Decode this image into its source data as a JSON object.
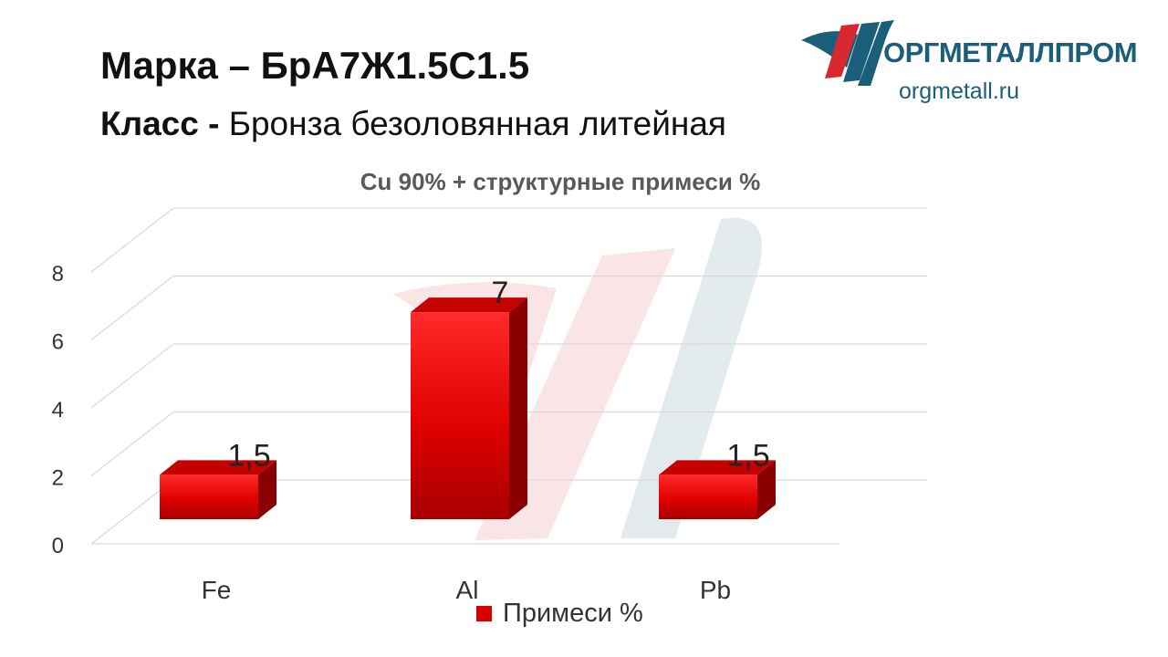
{
  "header": {
    "title_prefix": "Марка",
    "title_dash": "–",
    "title_grade": "БрА7Ж1.5С1.5",
    "class_label": "Класс -",
    "class_value": "Бронза безоловянная литейная"
  },
  "logo": {
    "name": "ОРГМЕТАЛЛПРОМ",
    "url": "orgmetall.ru"
  },
  "colors": {
    "bar": "#d40000",
    "logo_blue": "#1b5e7a",
    "logo_red": "#d7282f"
  },
  "chart_data": {
    "type": "bar",
    "title": "Cu 90% + структурные примеси %",
    "categories": [
      "Fe",
      "Al",
      "Pb"
    ],
    "series": [
      {
        "name": "Примеси %",
        "values": [
          1.5,
          7,
          1.5
        ]
      }
    ],
    "data_labels": [
      "1,5",
      "7",
      "1,5"
    ],
    "y_ticks": [
      0,
      2,
      4,
      6,
      8
    ],
    "ylim": [
      0,
      8
    ],
    "grid": true,
    "legend": "bottom",
    "style": "3d"
  }
}
